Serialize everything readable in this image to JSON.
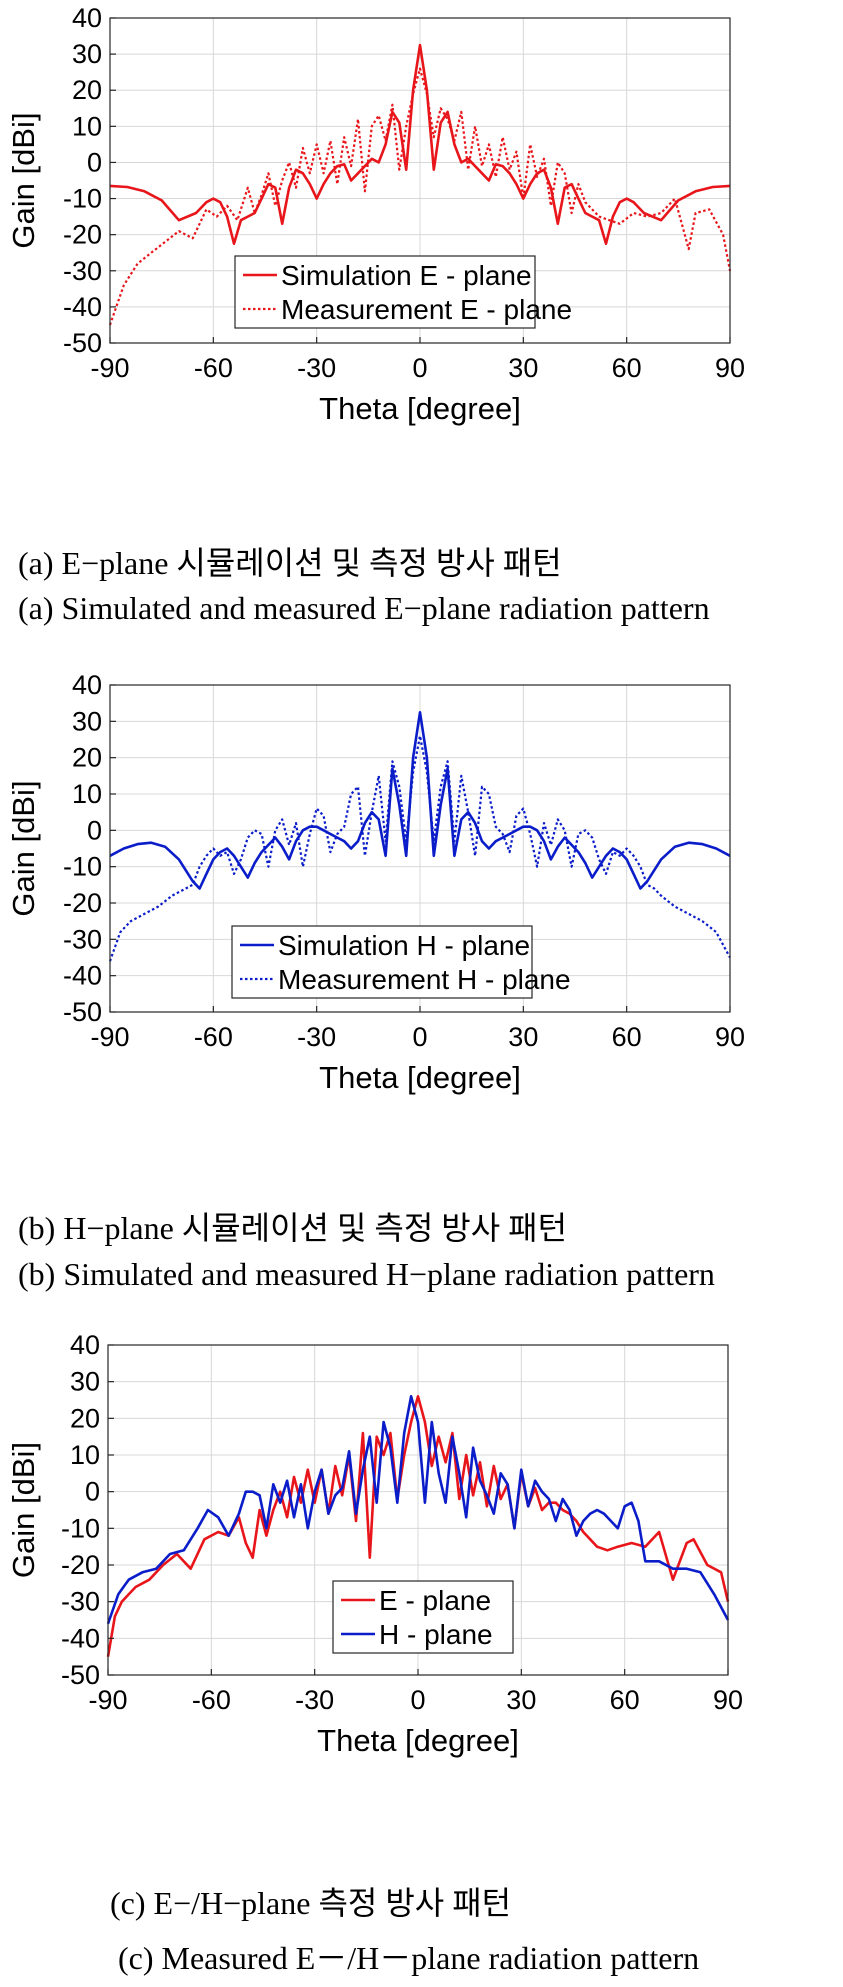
{
  "figure": {
    "caption_a_ko": "(a) E−plane 시뮬레이션 및 측정 방사 패턴",
    "caption_a_en": "(a) Simulated and measured E−plane radiation pattern",
    "caption_b_ko": "(b) H−plane 시뮬레이션 및 측정 방사 패턴",
    "caption_b_en": "(b) Simulated and measured H−plane radiation pattern",
    "caption_c_ko": "(c) E−/H−plane 측정 방사 패턴",
    "caption_c_en": "(c) Measured E－/H－plane radiation pattern"
  },
  "chart_data": [
    {
      "type": "line",
      "xlabel": "Theta [degree]",
      "ylabel": "Gain [dBi]",
      "xlim": [
        -90,
        90
      ],
      "ylim": [
        -50,
        40
      ],
      "xticks": [
        -90,
        -60,
        -30,
        0,
        30,
        60,
        90
      ],
      "yticks": [
        40,
        30,
        20,
        10,
        0,
        -10,
        -20,
        -30,
        -40,
        -50
      ],
      "grid": true,
      "legend_position": "lower-center",
      "series": [
        {
          "name": "Simulation E - plane",
          "color": "#e8161b",
          "style": "solid",
          "x": [
            -90,
            -85,
            -80,
            -75,
            -70,
            -65,
            -62,
            -60,
            -58,
            -56,
            -54,
            -52,
            -50,
            -48,
            -46,
            -44,
            -42,
            -40,
            -38,
            -36,
            -34,
            -32,
            -30,
            -28,
            -26,
            -24,
            -22,
            -20,
            -18,
            -16,
            -14,
            -12,
            -10,
            -8,
            -6,
            -4,
            -2,
            0,
            2,
            4,
            6,
            8,
            10,
            12,
            14,
            16,
            18,
            20,
            22,
            24,
            26,
            28,
            30,
            32,
            34,
            36,
            38,
            40,
            42,
            44,
            46,
            48,
            50,
            52,
            54,
            56,
            58,
            60,
            62,
            65,
            70,
            75,
            80,
            85,
            90
          ],
          "y": [
            -6.5,
            -6.8,
            -8,
            -10.5,
            -16,
            -14,
            -11,
            -10,
            -11,
            -15,
            -22.5,
            -16,
            -15,
            -14,
            -10,
            -6,
            -7,
            -17,
            -7,
            -2,
            -3,
            -6,
            -10,
            -6,
            -3,
            -1,
            -0.5,
            -5,
            -3,
            -1,
            1,
            0,
            5,
            14,
            11,
            -2,
            20,
            32.5,
            20,
            -2,
            11,
            14,
            5,
            0,
            1,
            -1,
            -3,
            -5,
            -0.5,
            -1,
            -3,
            -6,
            -10,
            -6,
            -3,
            -2,
            -7,
            -17,
            -7,
            -6,
            -10,
            -14,
            -15,
            -16,
            -22.5,
            -15,
            -11,
            -10,
            -11,
            -14,
            -16,
            -10.5,
            -8,
            -6.8,
            -6.5
          ]
        },
        {
          "name": "Measurement E - plane",
          "color": "#e8161b",
          "style": "dotted",
          "x": [
            -90,
            -86,
            -82,
            -78,
            -74,
            -70,
            -66,
            -62,
            -59,
            -56,
            -53,
            -50,
            -48,
            -46,
            -44,
            -42,
            -40,
            -38,
            -36,
            -34,
            -32,
            -30,
            -28,
            -26,
            -24,
            -22,
            -20,
            -18,
            -16,
            -14,
            -12,
            -10,
            -8,
            -6,
            -4,
            -2,
            0,
            2,
            4,
            6,
            8,
            10,
            12,
            14,
            16,
            18,
            20,
            22,
            24,
            26,
            28,
            30,
            32,
            34,
            36,
            38,
            40,
            42,
            44,
            46,
            48,
            50,
            52,
            55,
            58,
            62,
            66,
            70,
            74,
            78,
            80,
            84,
            88,
            90
          ],
          "y": [
            -45,
            -34,
            -28,
            -25,
            -22,
            -19,
            -21,
            -13,
            -15,
            -12,
            -16,
            -7,
            -14,
            -9,
            -3,
            -12,
            -5,
            0,
            -7,
            4,
            -3,
            5,
            -3,
            6,
            -6,
            7,
            -1,
            12,
            -8,
            10,
            13,
            6,
            16,
            -2,
            10,
            19,
            26,
            19,
            7,
            15,
            12,
            6,
            14,
            -2,
            10,
            -1,
            5,
            -4,
            7,
            -2,
            3,
            -10,
            5,
            -4,
            1,
            -12,
            0,
            -3,
            -14,
            -6,
            -11,
            -13,
            -15,
            -16,
            -17,
            -14,
            -15,
            -14,
            -10,
            -24,
            -14,
            -13,
            -20,
            -30
          ]
        },
        {
          "name": "Simulation H - plane",
          "color": "#0b1dc9",
          "style": "solid",
          "x": [
            -90,
            -86,
            -82,
            -78,
            -74,
            -70,
            -66,
            -64,
            -62,
            -60,
            -58,
            -56,
            -54,
            -52,
            -50,
            -48,
            -46,
            -44,
            -42,
            -40,
            -38,
            -36,
            -34,
            -32,
            -30,
            -28,
            -26,
            -24,
            -22,
            -20,
            -18,
            -16,
            -14,
            -12,
            -10,
            -8,
            -6,
            -4,
            -2,
            0,
            2,
            4,
            6,
            8,
            10,
            12,
            14,
            16,
            18,
            20,
            22,
            24,
            26,
            28,
            30,
            32,
            34,
            36,
            38,
            40,
            42,
            44,
            46,
            48,
            50,
            52,
            54,
            56,
            58,
            60,
            62,
            64,
            66,
            70,
            74,
            78,
            82,
            86,
            90
          ],
          "y": [
            -7,
            -5,
            -3.8,
            -3.4,
            -4.5,
            -8,
            -14,
            -16,
            -12,
            -8,
            -6,
            -5,
            -7,
            -10,
            -13,
            -9,
            -6,
            -4,
            -2,
            -4.5,
            -8,
            -3,
            0,
            1,
            1,
            0,
            -1,
            -2,
            -3,
            -5,
            -3,
            2,
            5,
            3,
            -7,
            17,
            7,
            -7,
            20,
            32.5,
            20,
            -7,
            7,
            17,
            -7,
            3,
            5,
            2,
            -3,
            -5,
            -3,
            -2,
            -1,
            0,
            1,
            1,
            0,
            -3,
            -8,
            -4.5,
            -2,
            -4,
            -6,
            -9,
            -13,
            -10,
            -7,
            -5,
            -6,
            -8,
            -12,
            -16,
            -14,
            -8,
            -4.5,
            -3.4,
            -3.8,
            -5,
            -7
          ]
        },
        {
          "name": "Measurement H - plane",
          "color": "#0b1dc9",
          "style": "dotted",
          "x": [
            -90,
            -87,
            -84,
            -80,
            -76,
            -72,
            -68,
            -66,
            -64,
            -62,
            -60,
            -58,
            -56,
            -54,
            -52,
            -50,
            -48,
            -46,
            -44,
            -42,
            -40,
            -38,
            -36,
            -34,
            -32,
            -30,
            -28,
            -26,
            -24,
            -22,
            -20,
            -18,
            -16,
            -14,
            -12,
            -10,
            -8,
            -6,
            -4,
            -2,
            0,
            2,
            4,
            6,
            8,
            10,
            12,
            14,
            16,
            18,
            20,
            22,
            24,
            26,
            28,
            30,
            32,
            34,
            36,
            38,
            40,
            42,
            44,
            46,
            48,
            50,
            52,
            54,
            56,
            58,
            60,
            62,
            64,
            66,
            68,
            70,
            74,
            78,
            82,
            86,
            90
          ],
          "y": [
            -36,
            -28,
            -25,
            -23,
            -21,
            -18,
            -16,
            -15,
            -10,
            -7,
            -5,
            -7,
            -6,
            -12,
            -8,
            -2,
            0,
            -1,
            -10,
            0,
            3,
            -4,
            2,
            -10,
            -1,
            6,
            4,
            -6,
            -1,
            1,
            10,
            12,
            -7,
            5,
            15,
            -3,
            19,
            12,
            -3,
            16,
            26,
            16,
            -3,
            12,
            19,
            -3,
            15,
            5,
            -7,
            12,
            10,
            1,
            -1,
            -6,
            4,
            6,
            -1,
            -10,
            2,
            -4,
            3,
            0,
            -10,
            -1,
            0,
            -2,
            -8,
            -12,
            -6,
            -7,
            -5,
            -7,
            -10,
            -15,
            -16,
            -18,
            -21,
            -23,
            -25,
            -28,
            -35
          ]
        }
      ]
    },
    {
      "type": "line",
      "xlabel": "Theta [degree]",
      "ylabel": "Gain [dBi]",
      "xlim": [
        -90,
        90
      ],
      "ylim": [
        -50,
        40
      ],
      "xticks": [
        -90,
        -60,
        -30,
        0,
        30,
        60,
        90
      ],
      "yticks": [
        40,
        30,
        20,
        10,
        0,
        -10,
        -20,
        -30,
        -40,
        -50
      ],
      "grid": true,
      "legend_position": "lower-center",
      "series": [
        {
          "name": "E - plane",
          "color": "#e8161b",
          "style": "solid",
          "x": [
            -90,
            -88,
            -86,
            -82,
            -78,
            -74,
            -70,
            -66,
            -62,
            -58,
            -55,
            -52,
            -50,
            -48,
            -46,
            -44,
            -42,
            -40,
            -38,
            -36,
            -34,
            -32,
            -30,
            -28,
            -26,
            -24,
            -22,
            -20,
            -18,
            -16,
            -14,
            -12,
            -10,
            -8,
            -6,
            -4,
            -2,
            0,
            2,
            4,
            6,
            8,
            10,
            12,
            14,
            16,
            18,
            20,
            22,
            24,
            26,
            28,
            30,
            32,
            34,
            36,
            38,
            40,
            42,
            44,
            46,
            48,
            50,
            52,
            55,
            58,
            62,
            66,
            70,
            74,
            78,
            80,
            84,
            88,
            90
          ],
          "y": [
            -45,
            -34,
            -30,
            -26,
            -24,
            -20,
            -17,
            -21,
            -13,
            -11,
            -12,
            -7,
            -14,
            -18,
            -5,
            -12,
            -5,
            0,
            -7,
            4,
            -3,
            6,
            -3,
            6,
            -6,
            7,
            -1,
            10,
            -8,
            16,
            -18,
            15,
            10,
            16,
            -2,
            10,
            19,
            26,
            19,
            7,
            15,
            8,
            16,
            -2,
            10,
            -1,
            8,
            -4,
            7,
            -2,
            2,
            -10,
            5,
            -4,
            1,
            -5,
            -3,
            -3,
            -5,
            -6,
            -8,
            -11,
            -13,
            -15,
            -16,
            -15,
            -14,
            -15,
            -11,
            -24,
            -14,
            -13,
            -20,
            -22,
            -30
          ]
        },
        {
          "name": "H - plane",
          "color": "#0b1dc9",
          "style": "solid",
          "x": [
            -90,
            -87,
            -84,
            -80,
            -76,
            -72,
            -68,
            -64,
            -61,
            -58,
            -55,
            -52,
            -50,
            -48,
            -46,
            -44,
            -42,
            -40,
            -38,
            -36,
            -34,
            -32,
            -30,
            -28,
            -26,
            -24,
            -22,
            -20,
            -18,
            -16,
            -14,
            -12,
            -10,
            -8,
            -6,
            -4,
            -2,
            0,
            2,
            4,
            6,
            8,
            10,
            12,
            14,
            16,
            18,
            20,
            22,
            24,
            26,
            28,
            30,
            32,
            34,
            36,
            38,
            40,
            42,
            44,
            46,
            48,
            50,
            52,
            54,
            56,
            58,
            60,
            62,
            64,
            66,
            70,
            74,
            78,
            82,
            86,
            90
          ],
          "y": [
            -36,
            -28,
            -24,
            -22,
            -21,
            -17,
            -16,
            -10,
            -5,
            -7,
            -12,
            -6,
            0,
            0,
            -1,
            -10,
            2,
            -3,
            3,
            -7,
            2,
            -10,
            0,
            6,
            -6,
            -1,
            1,
            11,
            -6,
            6,
            15,
            -3,
            19,
            12,
            -3,
            16,
            26,
            19,
            -3,
            19,
            5,
            -3,
            15,
            5,
            -7,
            12,
            3,
            -1,
            -6,
            5,
            2,
            -10,
            6,
            -4,
            3,
            0,
            -2,
            -8,
            -2,
            -5,
            -12,
            -8,
            -6,
            -5,
            -6,
            -8,
            -10,
            -4,
            -3,
            -8,
            -19,
            -19,
            -21,
            -21,
            -22,
            -28,
            -35
          ]
        }
      ]
    }
  ]
}
